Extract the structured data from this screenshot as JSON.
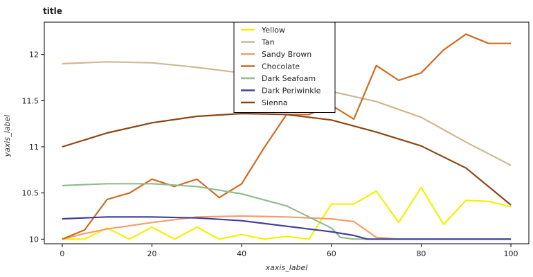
{
  "chart_data": {
    "type": "line",
    "title": "title",
    "xlabel": "xaxis_label",
    "ylabel": "yaxis_label",
    "xlim": [
      -4,
      104
    ],
    "ylim": [
      9.95,
      12.35
    ],
    "xticks": [
      0,
      20,
      40,
      60,
      80,
      100
    ],
    "yticks": [
      10,
      10.5,
      11,
      11.5,
      12
    ],
    "legend_position": "top-center",
    "series": [
      {
        "name": "Yellow",
        "color": "#f2f200",
        "x": [
          0,
          5,
          10,
          15,
          20,
          25,
          30,
          35,
          40,
          45,
          50,
          55,
          60,
          65,
          70,
          75,
          80,
          85,
          90,
          95,
          100
        ],
        "y": [
          10,
          10,
          10.12,
          10,
          10.13,
          10,
          10.13,
          10,
          10.05,
          10,
          10.03,
          10,
          10.38,
          10.38,
          10.52,
          10.18,
          10.56,
          10.16,
          10.42,
          10.41,
          10.35
        ]
      },
      {
        "name": "Tan",
        "color": "#cdb891",
        "x": [
          0,
          10,
          20,
          30,
          40,
          50,
          60,
          70,
          80,
          90,
          100
        ],
        "y": [
          11.9,
          11.92,
          11.91,
          11.86,
          11.8,
          11.71,
          11.6,
          11.49,
          11.32,
          11.05,
          10.8
        ]
      },
      {
        "name": "Sandy Brown",
        "color": "#f0a06c",
        "x": [
          0,
          5,
          10,
          20,
          30,
          40,
          50,
          60,
          65,
          70,
          75,
          80,
          90,
          100
        ],
        "y": [
          10,
          10.06,
          10.11,
          10.18,
          10.24,
          10.25,
          10.24,
          10.22,
          10.19,
          10.02,
          10,
          10,
          10,
          10
        ]
      },
      {
        "name": "Chocolate",
        "color": "#d2691e",
        "x": [
          0,
          5,
          10,
          15,
          20,
          25,
          30,
          35,
          40,
          45,
          50,
          55,
          60,
          65,
          70,
          75,
          80,
          85,
          90,
          95,
          100
        ],
        "y": [
          10,
          10.1,
          10.43,
          10.5,
          10.65,
          10.57,
          10.65,
          10.45,
          10.6,
          10.99,
          11.35,
          11.35,
          11.45,
          11.3,
          11.88,
          11.72,
          11.8,
          12.05,
          12.22,
          12.12,
          12.12
        ]
      },
      {
        "name": "Dark Seafoam",
        "color": "#8fbc8f",
        "x": [
          0,
          10,
          20,
          30,
          40,
          50,
          60,
          62,
          65,
          70,
          80,
          90,
          100
        ],
        "y": [
          10.58,
          10.6,
          10.6,
          10.57,
          10.49,
          10.36,
          10.12,
          10.02,
          10,
          10,
          10,
          10,
          10
        ]
      },
      {
        "name": "Dark Periwinkle",
        "color": "#3e3e9c",
        "x": [
          0,
          10,
          20,
          30,
          40,
          50,
          60,
          65,
          68,
          70,
          80,
          90,
          100
        ],
        "y": [
          10.22,
          10.24,
          10.24,
          10.23,
          10.2,
          10.14,
          10.08,
          10.04,
          10,
          10,
          10,
          10,
          10
        ]
      },
      {
        "name": "Sienna",
        "color": "#8b4513",
        "x": [
          0,
          10,
          20,
          30,
          40,
          50,
          60,
          70,
          80,
          90,
          100
        ],
        "y": [
          11,
          11.15,
          11.26,
          11.33,
          11.36,
          11.35,
          11.29,
          11.16,
          11.01,
          10.77,
          10.37
        ]
      }
    ]
  },
  "legend": [
    {
      "name": "Yellow",
      "color": "#f2f200"
    },
    {
      "name": "Tan",
      "color": "#cdb891"
    },
    {
      "name": "Sandy Brown",
      "color": "#f0a06c"
    },
    {
      "name": "Chocolate",
      "color": "#d2691e"
    },
    {
      "name": "Dark Seafoam",
      "color": "#8fbc8f"
    },
    {
      "name": "Dark Periwinkle",
      "color": "#3e3e9c"
    },
    {
      "name": "Sienna",
      "color": "#8b4513"
    }
  ]
}
